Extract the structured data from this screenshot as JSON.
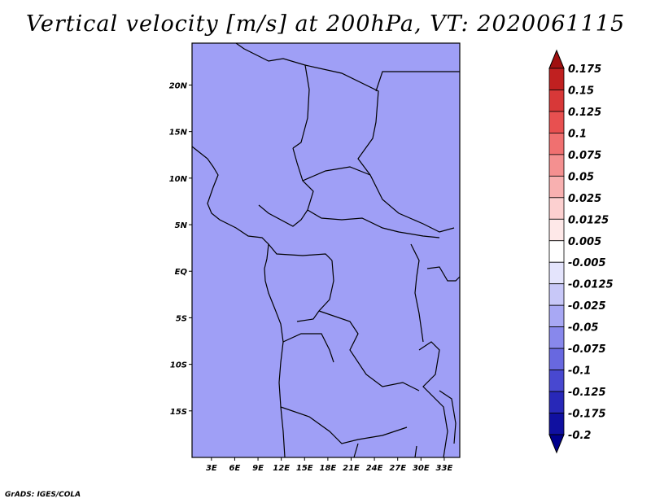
{
  "title": "Vertical velocity [m/s] at 200hPa, VT: 2020061115",
  "credit": "GrADS: IGES/COLA",
  "map": {
    "lat_labels": [
      "20N",
      "15N",
      "10N",
      "5N",
      "EQ",
      "5S",
      "10S",
      "15S"
    ],
    "lon_labels": [
      "3E",
      "6E",
      "9E",
      "12E",
      "15E",
      "18E",
      "21E",
      "24E",
      "27E",
      "30E",
      "33E"
    ],
    "lat_range": [
      -20,
      24.5
    ],
    "lon_range": [
      0.5,
      35
    ]
  },
  "colorbar": {
    "labels": [
      "0.175",
      "0.15",
      "0.125",
      "0.1",
      "0.075",
      "0.05",
      "0.025",
      "0.0125",
      "0.005",
      "-0.005",
      "-0.0125",
      "-0.025",
      "-0.05",
      "-0.075",
      "-0.1",
      "-0.125",
      "-0.175",
      "-0.2"
    ],
    "colors": [
      "#a01010",
      "#c02020",
      "#d83838",
      "#e85050",
      "#f07070",
      "#f49090",
      "#f8b0b0",
      "#fcd0d0",
      "#fee8e8",
      "#ffffff",
      "#e4e4fc",
      "#c8c8f8",
      "#a8a8f4",
      "#8888ec",
      "#6868e0",
      "#4848d0",
      "#2828b8",
      "#1010a0",
      "#00008c"
    ]
  }
}
